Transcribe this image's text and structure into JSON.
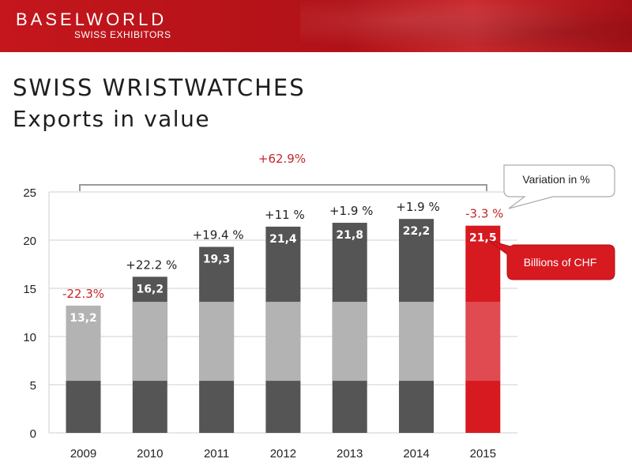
{
  "header": {
    "brand": "BASELWORLD",
    "brand_sub": "SWISS EXHIBITORS"
  },
  "slide": {
    "title": "SWISS WRISTWATCHES",
    "subtitle": "Exports in value"
  },
  "colors": {
    "banner_red": "#c4161c",
    "bar_dark": "#555555",
    "bar_light": "#b3b3b3",
    "highlight_red": "#d71920",
    "negative_red": "#c0282d",
    "text_dark": "#222222"
  },
  "chart_data": {
    "type": "bar",
    "categories": [
      "2009",
      "2010",
      "2011",
      "2012",
      "2013",
      "2014",
      "2015"
    ],
    "values": [
      13.2,
      16.2,
      19.3,
      21.4,
      21.8,
      22.2,
      21.5
    ],
    "value_labels": [
      "13,2",
      "16,2",
      "19,3",
      "21,4",
      "21,8",
      "22,2",
      "21,5"
    ],
    "variation_labels": [
      "-22.3%",
      "+22.2 %",
      "+19.4 %",
      "+11 %",
      "+1.9 %",
      "+1.9 %",
      "-3.3 %"
    ],
    "variation_negative": [
      true,
      false,
      false,
      false,
      false,
      false,
      true
    ],
    "highlight_index": 6,
    "yticks": [
      "0",
      "5",
      "10",
      "15",
      "20",
      "25"
    ],
    "ylim": [
      0,
      25
    ],
    "grid": true,
    "bracket_label": "+62.9%",
    "callout_variation": "Variation in %",
    "callout_unit": "Billions of CHF"
  }
}
